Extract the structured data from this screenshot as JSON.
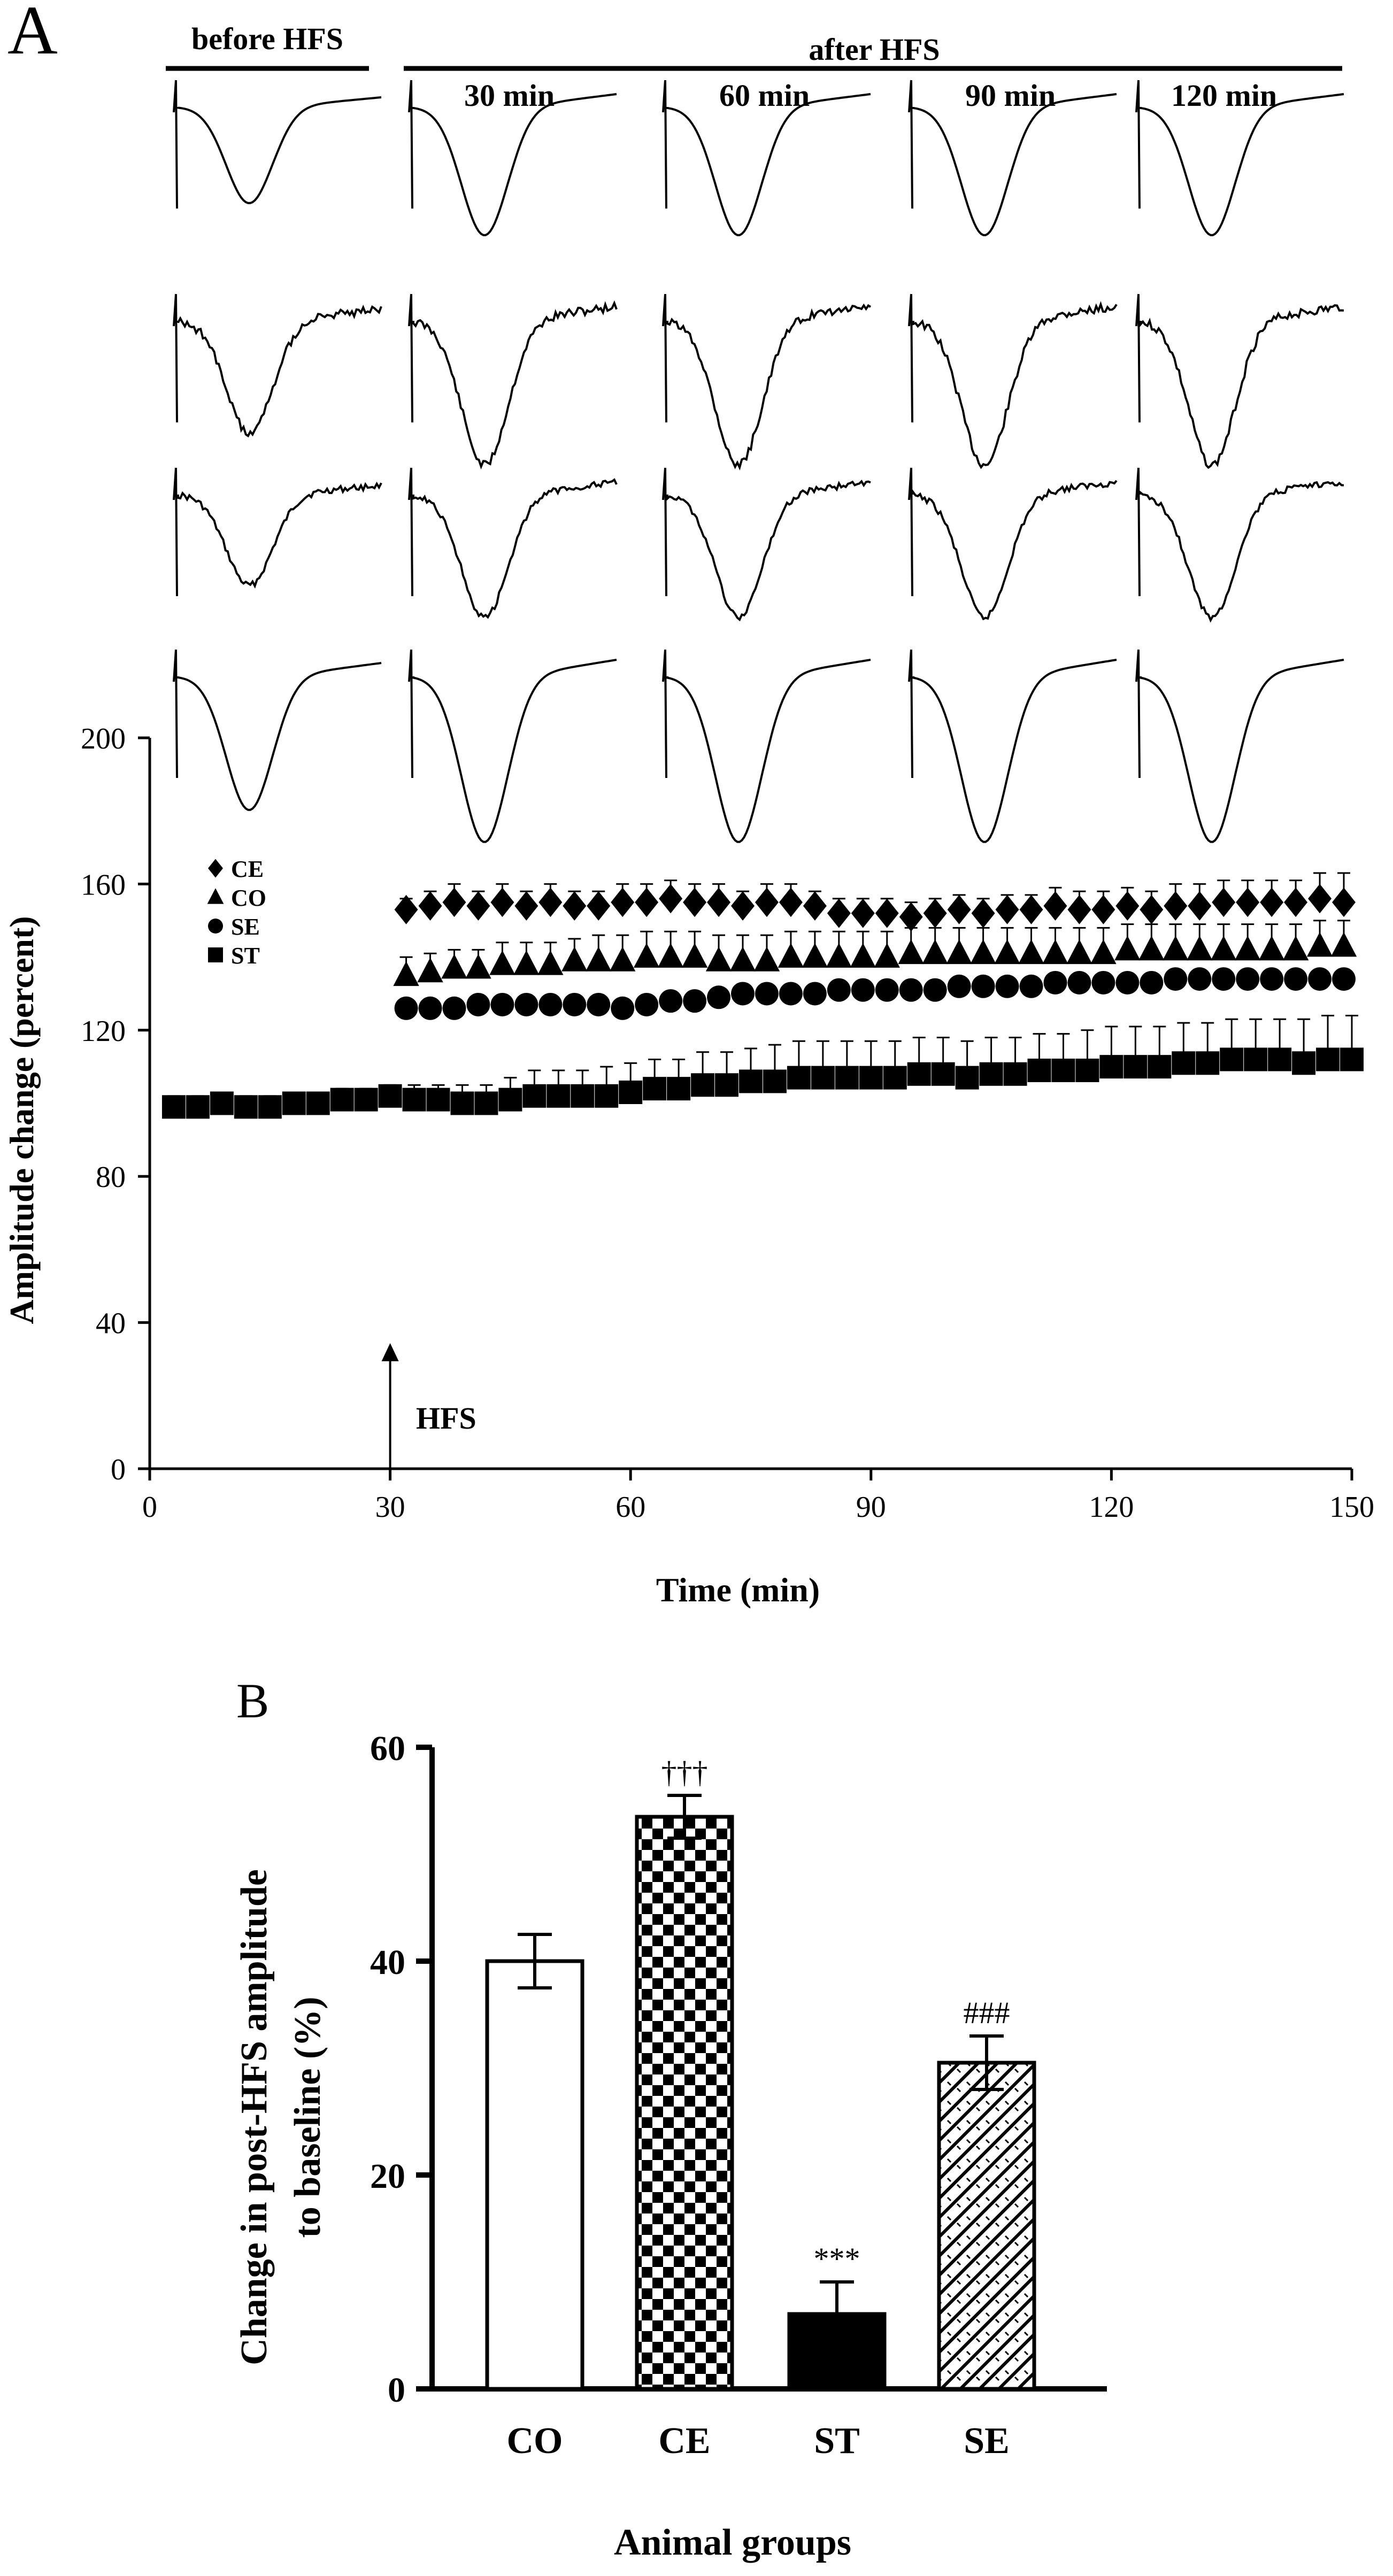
{
  "panel_a": {
    "label": "A",
    "before_label": "before HFS",
    "after_label": "after HFS",
    "time_labels": [
      "30 min",
      "60 min",
      "90 min",
      "120 min"
    ],
    "stim_label": "HFS",
    "stim_time": 30
  },
  "panel_b": {
    "label": "B"
  },
  "colors": {
    "ink": "#000000",
    "paper": "#ffffff"
  },
  "chart_data": [
    {
      "type": "scatter",
      "title": "",
      "xlabel": "Time (min)",
      "ylabel": "Amplitude change (percent)",
      "xlim": [
        0,
        150
      ],
      "ylim": [
        0,
        200
      ],
      "xticks": [
        0,
        30,
        60,
        90,
        120,
        150
      ],
      "yticks": [
        0,
        40,
        80,
        120,
        160,
        200
      ],
      "legend_position": "left",
      "series": [
        {
          "name": "CE",
          "marker": "diamond",
          "x": [
            32,
            35,
            38,
            41,
            44,
            47,
            50,
            53,
            56,
            59,
            62,
            65,
            68,
            71,
            74,
            77,
            80,
            83,
            86,
            89,
            92,
            95,
            98,
            101,
            104,
            107,
            110,
            113,
            116,
            119,
            122,
            125,
            128,
            131,
            134,
            137,
            140,
            143,
            146,
            149
          ],
          "values": [
            153,
            154,
            155,
            154,
            155,
            154,
            155,
            154,
            154,
            155,
            155,
            156,
            155,
            155,
            154,
            155,
            155,
            154,
            152,
            152,
            152,
            151,
            152,
            153,
            152,
            153,
            153,
            154,
            153,
            153,
            154,
            153,
            154,
            154,
            155,
            155,
            155,
            155,
            156,
            155
          ],
          "err": [
            3,
            4,
            5,
            4,
            5,
            4,
            5,
            4,
            4,
            5,
            5,
            5,
            5,
            5,
            4,
            5,
            5,
            4,
            4,
            4,
            4,
            4,
            4,
            4,
            4,
            4,
            4,
            5,
            5,
            5,
            5,
            5,
            6,
            6,
            6,
            6,
            6,
            6,
            7,
            8
          ]
        },
        {
          "name": "CO",
          "marker": "triangle",
          "x": [
            32,
            35,
            38,
            41,
            44,
            47,
            50,
            53,
            56,
            59,
            62,
            65,
            68,
            71,
            74,
            77,
            80,
            83,
            86,
            89,
            92,
            95,
            98,
            101,
            104,
            107,
            110,
            113,
            116,
            119,
            122,
            125,
            128,
            131,
            134,
            137,
            140,
            143,
            146,
            149
          ],
          "values": [
            135,
            136,
            137,
            137,
            138,
            138,
            138,
            139,
            139,
            139,
            140,
            140,
            140,
            139,
            139,
            139,
            140,
            140,
            140,
            140,
            140,
            141,
            141,
            141,
            141,
            141,
            141,
            141,
            141,
            141,
            142,
            142,
            142,
            142,
            142,
            142,
            142,
            142,
            143,
            143
          ],
          "err": [
            5,
            5,
            5,
            5,
            6,
            6,
            6,
            6,
            7,
            7,
            7,
            7,
            7,
            7,
            7,
            7,
            7,
            7,
            7,
            7,
            7,
            7,
            7,
            7,
            7,
            7,
            7,
            7,
            7,
            7,
            7,
            7,
            7,
            7,
            7,
            7,
            7,
            7,
            7,
            7
          ]
        },
        {
          "name": "SE",
          "marker": "circle",
          "x": [
            32,
            35,
            38,
            41,
            44,
            47,
            50,
            53,
            56,
            59,
            62,
            65,
            68,
            71,
            74,
            77,
            80,
            83,
            86,
            89,
            92,
            95,
            98,
            101,
            104,
            107,
            110,
            113,
            116,
            119,
            122,
            125,
            128,
            131,
            134,
            137,
            140,
            143,
            146,
            149
          ],
          "values": [
            126,
            126,
            126,
            127,
            127,
            127,
            127,
            127,
            127,
            126,
            127,
            128,
            128,
            129,
            130,
            130,
            130,
            130,
            131,
            131,
            131,
            131,
            131,
            132,
            132,
            132,
            132,
            133,
            133,
            133,
            133,
            133,
            134,
            134,
            134,
            134,
            134,
            134,
            134,
            134
          ],
          "err": [
            2,
            2,
            2,
            2,
            2,
            2,
            2,
            2,
            2,
            2,
            2,
            2,
            2,
            2,
            2,
            2,
            2,
            2,
            2,
            2,
            2,
            2,
            2,
            2,
            2,
            2,
            2,
            2,
            2,
            2,
            2,
            2,
            2,
            2,
            2,
            2,
            2,
            2,
            2,
            2
          ]
        },
        {
          "name": "ST",
          "marker": "square",
          "x": [
            3,
            6,
            9,
            12,
            15,
            18,
            21,
            24,
            27,
            30,
            33,
            36,
            39,
            42,
            45,
            48,
            51,
            54,
            57,
            60,
            63,
            66,
            69,
            72,
            75,
            78,
            81,
            84,
            87,
            90,
            93,
            96,
            99,
            102,
            105,
            108,
            111,
            114,
            117,
            120,
            123,
            126,
            129,
            132,
            135,
            138,
            141,
            144,
            147,
            150
          ],
          "values": [
            99,
            99,
            100,
            99,
            99,
            100,
            100,
            101,
            101,
            102,
            101,
            101,
            100,
            100,
            101,
            102,
            102,
            102,
            102,
            103,
            104,
            104,
            105,
            105,
            106,
            106,
            107,
            107,
            107,
            107,
            107,
            108,
            108,
            107,
            108,
            108,
            109,
            109,
            109,
            110,
            110,
            110,
            111,
            111,
            112,
            112,
            112,
            111,
            112,
            112
          ],
          "err": [
            3,
            3,
            3,
            3,
            3,
            3,
            3,
            3,
            3,
            3,
            4,
            4,
            5,
            5,
            6,
            7,
            7,
            7,
            8,
            8,
            8,
            8,
            9,
            9,
            9,
            10,
            10,
            10,
            10,
            10,
            10,
            10,
            10,
            10,
            10,
            10,
            10,
            10,
            11,
            11,
            11,
            11,
            11,
            11,
            11,
            11,
            11,
            12,
            12,
            12
          ]
        }
      ]
    },
    {
      "type": "bar",
      "title": "",
      "xlabel": "Animal groups",
      "ylabel_line1": "Change in post-HFS amplitude",
      "ylabel_line2": "to baseline (%)",
      "ylim": [
        0,
        60
      ],
      "yticks": [
        0,
        20,
        40,
        60
      ],
      "categories": [
        "CO",
        "CE",
        "ST",
        "SE"
      ],
      "values": [
        40,
        53.5,
        7,
        30.5
      ],
      "err": [
        2.5,
        2,
        3,
        2.5
      ],
      "annotations": [
        "",
        "†††",
        "***",
        "###"
      ],
      "fills": [
        "white",
        "checker",
        "black",
        "hatch"
      ]
    }
  ]
}
